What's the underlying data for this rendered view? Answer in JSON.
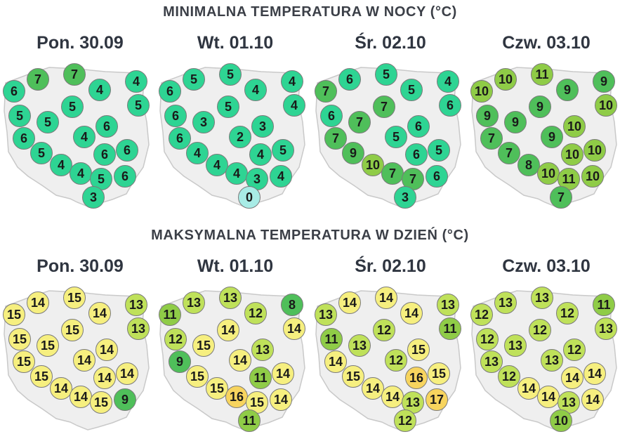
{
  "titles": {
    "min": "MINIMALNA TEMPERATURA W NOCY (°C)",
    "max": "MAKSYMALNA TEMPERATURA W DZIEŃ (°C)"
  },
  "days": [
    "Pon. 30.09",
    "Wt. 01.10",
    "Śr. 02.10",
    "Czw. 03.10"
  ],
  "colors": {
    "map_fill": "#efefef",
    "map_border": "#c9c9c9",
    "t0": "#a8ece6",
    "t3_7": "#2ed493",
    "t7_9": "#4fbf5a",
    "t10_11": "#8fcc47",
    "t12_13": "#bfe15a",
    "t14_15": "#f6ef7f",
    "t16_17": "#f7d45e"
  },
  "chart_data": {
    "type": "map",
    "stations": [
      "north-west-coast",
      "gdansk-west",
      "gdansk",
      "olsztyn",
      "suwalki",
      "szczecin",
      "bydgoszcz",
      "bialystok",
      "gorzow",
      "poznan",
      "warszawa",
      "lodz",
      "biala-podlaska",
      "lublin",
      "zielona-gora",
      "wroclaw",
      "opole",
      "katowice",
      "krakow",
      "rzeszow",
      "zakopane"
    ],
    "min_temp": {
      "Pon. 30.09": [
        6,
        7,
        7,
        4,
        4,
        5,
        5,
        5,
        6,
        5,
        6,
        4,
        6,
        6,
        5,
        4,
        4,
        5,
        6,
        3,
        null
      ],
      "Wt. 01.10": [
        6,
        5,
        5,
        4,
        4,
        6,
        5,
        4,
        6,
        3,
        3,
        2,
        5,
        4,
        4,
        4,
        4,
        3,
        4,
        0,
        null
      ],
      "Śr. 02.10": [
        7,
        6,
        5,
        5,
        4,
        6,
        7,
        6,
        7,
        7,
        6,
        5,
        5,
        6,
        9,
        10,
        7,
        7,
        6,
        3,
        null
      ],
      "Czw. 03.10": [
        10,
        10,
        11,
        9,
        9,
        9,
        9,
        10,
        7,
        9,
        10,
        9,
        10,
        10,
        7,
        8,
        10,
        11,
        10,
        7,
        null
      ]
    },
    "max_temp": {
      "Pon. 30.09": [
        15,
        14,
        15,
        14,
        13,
        15,
        15,
        13,
        15,
        15,
        14,
        14,
        14,
        14,
        15,
        14,
        14,
        15,
        9,
        null,
        null
      ],
      "Wt. 01.10": [
        11,
        13,
        13,
        12,
        8,
        12,
        14,
        14,
        9,
        15,
        13,
        14,
        14,
        11,
        15,
        15,
        16,
        15,
        14,
        11,
        null
      ],
      "Śr. 02.10": [
        13,
        14,
        14,
        14,
        13,
        11,
        12,
        11,
        14,
        13,
        15,
        12,
        15,
        16,
        15,
        14,
        14,
        13,
        17,
        12,
        null
      ],
      "Czw. 03.10": [
        12,
        13,
        13,
        12,
        11,
        12,
        12,
        13,
        13,
        13,
        12,
        13,
        14,
        14,
        12,
        14,
        14,
        13,
        14,
        10,
        null
      ]
    }
  }
}
